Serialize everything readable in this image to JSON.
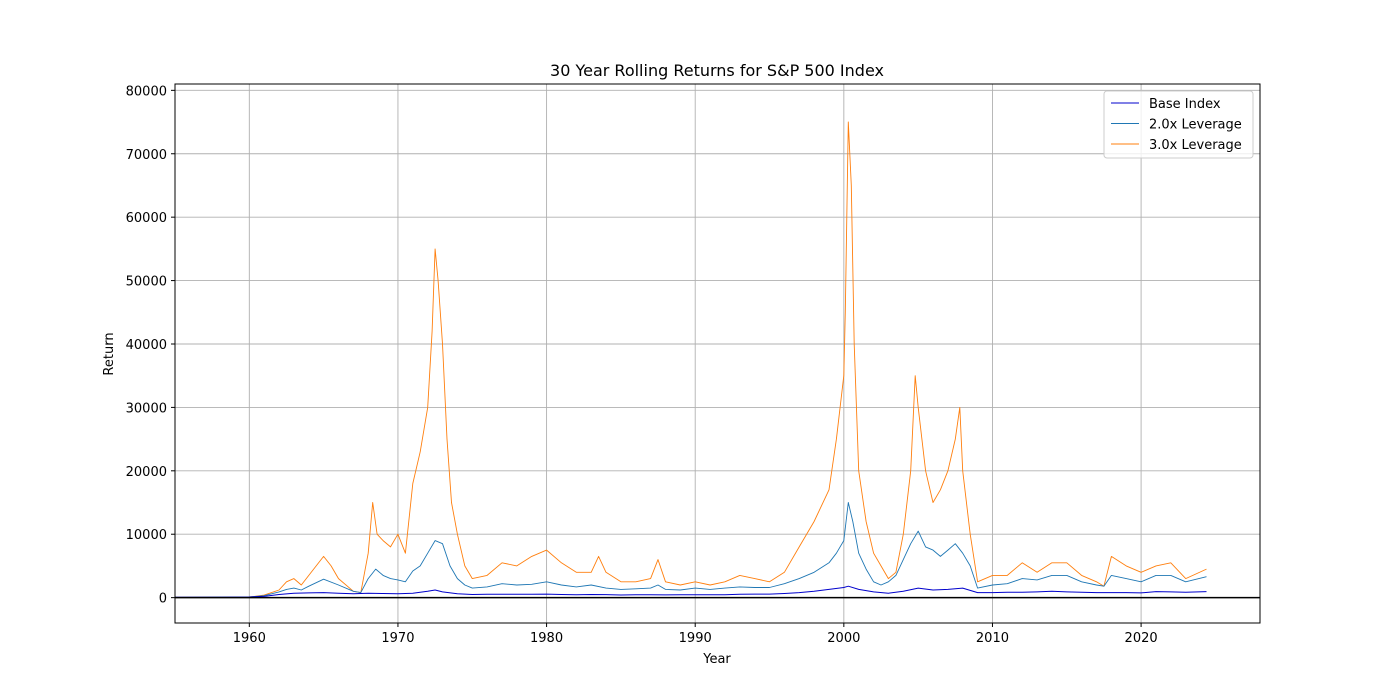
{
  "chart_data": {
    "type": "line",
    "title": "30 Year Rolling Returns for S&P 500 Index",
    "xlabel": "Year",
    "ylabel": "Return",
    "xlim": [
      1955,
      2028
    ],
    "ylim": [
      -4000,
      81000
    ],
    "xticks": [
      1960,
      1970,
      1980,
      1990,
      2000,
      2010,
      2020
    ],
    "yticks": [
      0,
      10000,
      20000,
      30000,
      40000,
      50000,
      60000,
      70000,
      80000
    ],
    "grid": true,
    "legend_position": "top-right",
    "reference_line": {
      "y": 0,
      "color": "#000000"
    },
    "series": [
      {
        "name": "Base Index",
        "color": "#0000cc",
        "x": [
          1955.0,
          1958.0,
          1960.0,
          1961.0,
          1962.0,
          1963.0,
          1964.0,
          1965.0,
          1966.0,
          1967.0,
          1968.0,
          1969.0,
          1970.0,
          1971.0,
          1972.0,
          1972.5,
          1973.0,
          1974.0,
          1975.0,
          1976.0,
          1977.0,
          1978.0,
          1979.0,
          1980.0,
          1981.0,
          1982.0,
          1983.0,
          1984.0,
          1985.0,
          1986.0,
          1987.0,
          1988.0,
          1989.0,
          1990.0,
          1991.0,
          1992.0,
          1993.0,
          1994.0,
          1995.0,
          1996.0,
          1997.0,
          1998.0,
          1999.0,
          2000.0,
          2000.3,
          2001.0,
          2002.0,
          2003.0,
          2004.0,
          2005.0,
          2006.0,
          2007.0,
          2008.0,
          2009.0,
          2010.0,
          2011.0,
          2012.0,
          2013.0,
          2014.0,
          2015.0,
          2016.0,
          2017.0,
          2018.0,
          2019.0,
          2020.0,
          2021.0,
          2022.0,
          2023.0,
          2024.4
        ],
        "y": [
          50,
          60,
          100,
          200,
          500,
          700,
          750,
          800,
          700,
          600,
          700,
          650,
          600,
          700,
          1000,
          1200,
          900,
          600,
          500,
          520,
          540,
          520,
          540,
          550,
          500,
          450,
          500,
          480,
          420,
          450,
          470,
          430,
          450,
          460,
          440,
          450,
          520,
          560,
          550,
          650,
          800,
          1000,
          1300,
          1600,
          1800,
          1300,
          900,
          700,
          1000,
          1500,
          1200,
          1300,
          1500,
          800,
          800,
          850,
          850,
          900,
          1000,
          900,
          850,
          800,
          800,
          800,
          750,
          950,
          900,
          850,
          950
        ]
      },
      {
        "name": "2.0x Leverage",
        "color": "#1f77b4",
        "x": [
          1955.0,
          1958.0,
          1960.0,
          1961.0,
          1962.0,
          1962.5,
          1963.0,
          1963.5,
          1964.0,
          1965.0,
          1966.0,
          1967.0,
          1967.5,
          1968.0,
          1968.5,
          1969.0,
          1969.5,
          1970.0,
          1970.5,
          1971.0,
          1971.5,
          1972.0,
          1972.5,
          1973.0,
          1973.5,
          1974.0,
          1974.5,
          1975.0,
          1976.0,
          1977.0,
          1978.0,
          1979.0,
          1980.0,
          1981.0,
          1982.0,
          1983.0,
          1984.0,
          1985.0,
          1986.0,
          1987.0,
          1987.5,
          1988.0,
          1989.0,
          1990.0,
          1991.0,
          1992.0,
          1993.0,
          1994.0,
          1995.0,
          1996.0,
          1997.0,
          1998.0,
          1999.0,
          1999.5,
          2000.0,
          2000.3,
          2000.6,
          2001.0,
          2001.5,
          2002.0,
          2002.5,
          2003.0,
          2003.5,
          2004.0,
          2004.5,
          2005.0,
          2005.5,
          2006.0,
          2006.5,
          2007.0,
          2007.5,
          2008.0,
          2008.5,
          2009.0,
          2010.0,
          2011.0,
          2012.0,
          2013.0,
          2014.0,
          2015.0,
          2016.0,
          2017.0,
          2017.5,
          2018.0,
          2019.0,
          2020.0,
          2021.0,
          2022.0,
          2023.0,
          2024.4
        ],
        "y": [
          50,
          80,
          100,
          300,
          900,
          1300,
          1500,
          1200,
          1800,
          2900,
          2000,
          1000,
          800,
          3000,
          4500,
          3500,
          3000,
          2800,
          2500,
          4200,
          5000,
          7000,
          9000,
          8500,
          5000,
          3000,
          2000,
          1500,
          1700,
          2200,
          2000,
          2100,
          2500,
          2000,
          1700,
          2000,
          1500,
          1300,
          1400,
          1500,
          2000,
          1300,
          1200,
          1500,
          1300,
          1500,
          1700,
          1600,
          1600,
          2200,
          3000,
          4000,
          5500,
          7000,
          9000,
          15000,
          12000,
          7000,
          4500,
          2500,
          2000,
          2500,
          3500,
          6000,
          8500,
          10500,
          8000,
          7500,
          6500,
          7500,
          8500,
          7000,
          5000,
          1500,
          2000,
          2200,
          3000,
          2800,
          3500,
          3500,
          2500,
          2000,
          1800,
          3500,
          3000,
          2500,
          3500,
          3500,
          2500,
          3300
        ]
      },
      {
        "name": "3.0x Leverage",
        "color": "#ff7f0e",
        "x": [
          1955.0,
          1958.0,
          1960.0,
          1961.0,
          1962.0,
          1962.5,
          1963.0,
          1963.5,
          1964.0,
          1965.0,
          1965.5,
          1966.0,
          1967.0,
          1967.5,
          1968.0,
          1968.3,
          1968.6,
          1969.0,
          1969.5,
          1970.0,
          1970.5,
          1971.0,
          1971.5,
          1972.0,
          1972.3,
          1972.5,
          1972.7,
          1973.0,
          1973.3,
          1973.6,
          1974.0,
          1974.5,
          1975.0,
          1976.0,
          1977.0,
          1978.0,
          1979.0,
          1980.0,
          1981.0,
          1982.0,
          1983.0,
          1983.5,
          1984.0,
          1985.0,
          1986.0,
          1987.0,
          1987.5,
          1988.0,
          1989.0,
          1990.0,
          1991.0,
          1992.0,
          1993.0,
          1994.0,
          1995.0,
          1996.0,
          1997.0,
          1998.0,
          1999.0,
          1999.5,
          2000.0,
          2000.1,
          2000.3,
          2000.5,
          2000.7,
          2001.0,
          2001.5,
          2002.0,
          2002.5,
          2003.0,
          2003.5,
          2004.0,
          2004.5,
          2004.8,
          2005.0,
          2005.5,
          2006.0,
          2006.5,
          2007.0,
          2007.5,
          2007.8,
          2008.0,
          2008.5,
          2009.0,
          2010.0,
          2011.0,
          2012.0,
          2013.0,
          2014.0,
          2015.0,
          2016.0,
          2017.0,
          2017.5,
          2018.0,
          2019.0,
          2020.0,
          2021.0,
          2022.0,
          2023.0,
          2024.4
        ],
        "y": [
          50,
          80,
          100,
          400,
          1200,
          2500,
          3000,
          2000,
          3500,
          6500,
          5000,
          3000,
          1000,
          800,
          7000,
          15000,
          10000,
          9000,
          8000,
          10000,
          7000,
          18000,
          23000,
          30000,
          42000,
          55000,
          50000,
          40000,
          25000,
          15000,
          10000,
          5000,
          3000,
          3500,
          5500,
          5000,
          6500,
          7500,
          5500,
          4000,
          4000,
          6500,
          4000,
          2500,
          2500,
          3000,
          6000,
          2500,
          2000,
          2500,
          2000,
          2500,
          3500,
          3000,
          2500,
          4000,
          8000,
          12000,
          17000,
          25000,
          35000,
          45000,
          75000,
          65000,
          40000,
          20000,
          12000,
          7000,
          5000,
          3000,
          4000,
          10000,
          20000,
          35000,
          30000,
          20000,
          15000,
          17000,
          20000,
          25000,
          30000,
          20000,
          10000,
          2500,
          3500,
          3500,
          5500,
          4000,
          5500,
          5500,
          3500,
          2500,
          1800,
          6500,
          5000,
          4000,
          5000,
          5500,
          3000,
          4500
        ]
      }
    ]
  }
}
